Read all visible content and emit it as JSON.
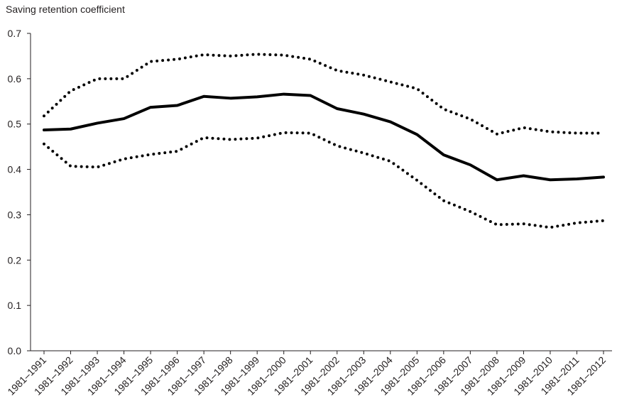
{
  "chart_data": {
    "type": "line",
    "ylabel": "Saving retention coefficient",
    "categories": [
      "1981–1991",
      "1981–1992",
      "1981–1993",
      "1981–1994",
      "1981–1995",
      "1981–1996",
      "1981–1997",
      "1981–1998",
      "1981–1999",
      "1981–2000",
      "1981–2001",
      "1981–2002",
      "1981–2003",
      "1981–2004",
      "1981–2005",
      "1981–2006",
      "1981–2007",
      "1981–2008",
      "1981–2009",
      "1981–2010",
      "1981–2011",
      "1981–2012"
    ],
    "series": [
      {
        "color": "#000000",
        "style": "dotted",
        "values": [
          0.518,
          0.573,
          0.6,
          0.6,
          0.638,
          0.643,
          0.653,
          0.65,
          0.654,
          0.652,
          0.643,
          0.618,
          0.608,
          0.593,
          0.578,
          0.533,
          0.511,
          0.478,
          0.492,
          0.483,
          0.48,
          0.48
        ]
      },
      {
        "color": "#000000",
        "style": "solid",
        "values": [
          0.487,
          0.489,
          0.502,
          0.512,
          0.537,
          0.541,
          0.561,
          0.557,
          0.56,
          0.566,
          0.563,
          0.534,
          0.522,
          0.505,
          0.477,
          0.432,
          0.41,
          0.377,
          0.386,
          0.377,
          0.379,
          0.383
        ]
      },
      {
        "color": "#000000",
        "style": "dotted",
        "values": [
          0.456,
          0.407,
          0.405,
          0.423,
          0.433,
          0.44,
          0.47,
          0.466,
          0.469,
          0.481,
          0.48,
          0.452,
          0.436,
          0.418,
          0.376,
          0.331,
          0.307,
          0.278,
          0.28,
          0.272,
          0.282,
          0.287
        ]
      }
    ],
    "ylim": [
      0,
      0.7
    ],
    "yticks": [
      {
        "value": 0,
        "label": "0.0"
      },
      0.1,
      0.2,
      0.3,
      0.4,
      0.5,
      0.6,
      0.7
    ],
    "grid": false
  }
}
